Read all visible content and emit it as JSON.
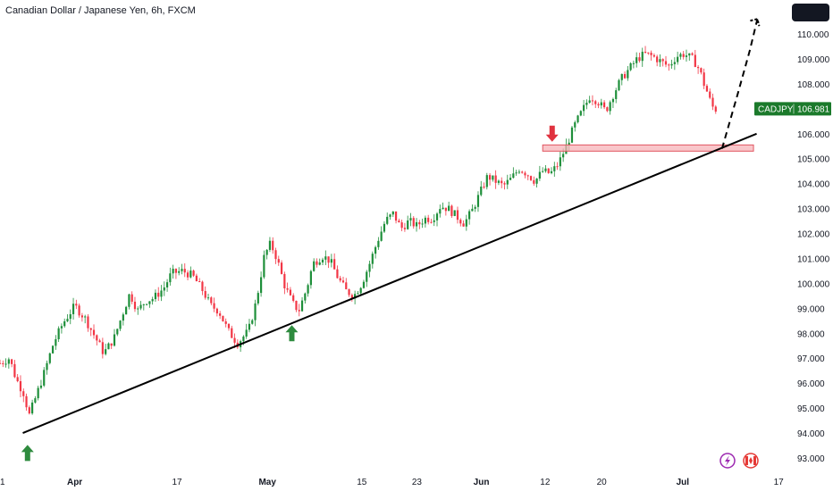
{
  "header": {
    "title": "Canadian Dollar / Japanese Yen, 6h, FXCM"
  },
  "colors": {
    "up": "#26a69a",
    "down": "#ef5350",
    "up_candle": "#1e8f3a",
    "down_candle": "#f23645",
    "badge_bg": "#1b7a2b",
    "trendline": "#000000",
    "zone_fill": "#f7b3b8",
    "zone_stroke": "#e05561",
    "arrow_up": "#2e8b3e",
    "arrow_down": "#e0323f"
  },
  "price_badge": {
    "symbol": "CADJPY",
    "price": "106.981"
  },
  "icons": {
    "lightning": "lightning-icon",
    "flag": "canada-flag-icon"
  },
  "chart_data": {
    "type": "candlestick",
    "title": "Canadian Dollar / Japanese Yen, 6h, FXCM",
    "xlabel": "",
    "ylabel": "",
    "ylim": [
      92.8,
      110.6
    ],
    "grid": false,
    "y_ticks": [
      "110.000",
      "109.000",
      "108.000",
      "107.000",
      "106.000",
      "105.000",
      "104.000",
      "103.000",
      "102.000",
      "101.000",
      "100.000",
      "99.000",
      "98.000",
      "97.000",
      "96.000",
      "95.000",
      "94.000",
      "93.000"
    ],
    "x_ticks": [
      {
        "label": "1",
        "pos": 0.0,
        "bold": false
      },
      {
        "label": "Apr",
        "pos": 0.095,
        "bold": true
      },
      {
        "label": "17",
        "pos": 0.225,
        "bold": false
      },
      {
        "label": "May",
        "pos": 0.34,
        "bold": true
      },
      {
        "label": "15",
        "pos": 0.46,
        "bold": false
      },
      {
        "label": "23",
        "pos": 0.53,
        "bold": false
      },
      {
        "label": "Jun",
        "pos": 0.612,
        "bold": true
      },
      {
        "label": "12",
        "pos": 0.693,
        "bold": false
      },
      {
        "label": "20",
        "pos": 0.765,
        "bold": false
      },
      {
        "label": "Jul",
        "pos": 0.868,
        "bold": true
      },
      {
        "label": "17",
        "pos": 0.99,
        "bold": false
      }
    ],
    "price_path": [
      [
        0.0,
        96.8
      ],
      [
        0.012,
        97.0
      ],
      [
        0.02,
        96.2
      ],
      [
        0.03,
        95.6
      ],
      [
        0.037,
        94.7
      ],
      [
        0.045,
        95.4
      ],
      [
        0.055,
        96.3
      ],
      [
        0.068,
        97.6
      ],
      [
        0.08,
        98.4
      ],
      [
        0.095,
        99.1
      ],
      [
        0.108,
        98.6
      ],
      [
        0.12,
        97.9
      ],
      [
        0.132,
        97.2
      ],
      [
        0.145,
        97.8
      ],
      [
        0.155,
        98.7
      ],
      [
        0.165,
        99.6
      ],
      [
        0.175,
        98.9
      ],
      [
        0.185,
        99.3
      ],
      [
        0.195,
        99.4
      ],
      [
        0.208,
        99.8
      ],
      [
        0.218,
        100.4
      ],
      [
        0.232,
        100.5
      ],
      [
        0.245,
        100.3
      ],
      [
        0.258,
        99.7
      ],
      [
        0.268,
        99.1
      ],
      [
        0.278,
        98.9
      ],
      [
        0.29,
        98.1
      ],
      [
        0.302,
        97.6
      ],
      [
        0.316,
        98.1
      ],
      [
        0.326,
        99.3
      ],
      [
        0.336,
        101.1
      ],
      [
        0.344,
        101.6
      ],
      [
        0.352,
        101.0
      ],
      [
        0.362,
        99.9
      ],
      [
        0.372,
        99.2
      ],
      [
        0.38,
        98.9
      ],
      [
        0.39,
        99.8
      ],
      [
        0.398,
        100.8
      ],
      [
        0.41,
        101.1
      ],
      [
        0.42,
        100.9
      ],
      [
        0.43,
        100.2
      ],
      [
        0.44,
        99.7
      ],
      [
        0.45,
        99.5
      ],
      [
        0.46,
        100.0
      ],
      [
        0.47,
        100.8
      ],
      [
        0.48,
        101.7
      ],
      [
        0.49,
        102.5
      ],
      [
        0.5,
        102.8
      ],
      [
        0.51,
        102.2
      ],
      [
        0.52,
        102.5
      ],
      [
        0.53,
        102.3
      ],
      [
        0.54,
        102.6
      ],
      [
        0.55,
        102.6
      ],
      [
        0.56,
        103.1
      ],
      [
        0.57,
        103.0
      ],
      [
        0.58,
        102.7
      ],
      [
        0.59,
        102.4
      ],
      [
        0.6,
        102.9
      ],
      [
        0.61,
        103.6
      ],
      [
        0.62,
        104.3
      ],
      [
        0.63,
        104.1
      ],
      [
        0.64,
        103.9
      ],
      [
        0.65,
        104.2
      ],
      [
        0.66,
        104.6
      ],
      [
        0.67,
        104.4
      ],
      [
        0.68,
        104.1
      ],
      [
        0.69,
        104.5
      ],
      [
        0.7,
        104.4
      ],
      [
        0.71,
        104.8
      ],
      [
        0.72,
        105.5
      ],
      [
        0.73,
        106.3
      ],
      [
        0.74,
        106.9
      ],
      [
        0.75,
        107.5
      ],
      [
        0.76,
        107.3
      ],
      [
        0.77,
        106.9
      ],
      [
        0.78,
        107.6
      ],
      [
        0.79,
        108.2
      ],
      [
        0.8,
        108.6
      ],
      [
        0.81,
        109.0
      ],
      [
        0.82,
        109.2
      ],
      [
        0.83,
        109.1
      ],
      [
        0.84,
        108.9
      ],
      [
        0.85,
        108.7
      ],
      [
        0.86,
        109.1
      ],
      [
        0.87,
        109.2
      ],
      [
        0.88,
        109.0
      ],
      [
        0.885,
        108.8
      ],
      [
        0.89,
        108.5
      ],
      [
        0.895,
        108.0
      ],
      [
        0.9,
        107.6
      ],
      [
        0.905,
        107.1
      ],
      [
        0.91,
        106.98
      ]
    ],
    "trendline": {
      "from": [
        0.029,
        94.0
      ],
      "to": [
        0.962,
        106.0
      ]
    },
    "support_zone": {
      "from_x": 0.69,
      "to_x": 0.958,
      "y_low": 105.3,
      "y_high": 105.55
    },
    "projection_path": [
      [
        0.918,
        105.4
      ],
      [
        0.938,
        107.6
      ],
      [
        0.953,
        109.3
      ],
      [
        0.963,
        110.6
      ]
    ],
    "markers": [
      {
        "type": "arrow-up",
        "x": 0.035,
        "y": 93.2
      },
      {
        "type": "arrow-up",
        "x": 0.371,
        "y": 98.0
      },
      {
        "type": "arrow-down",
        "x": 0.702,
        "y": 106.0
      }
    ]
  }
}
